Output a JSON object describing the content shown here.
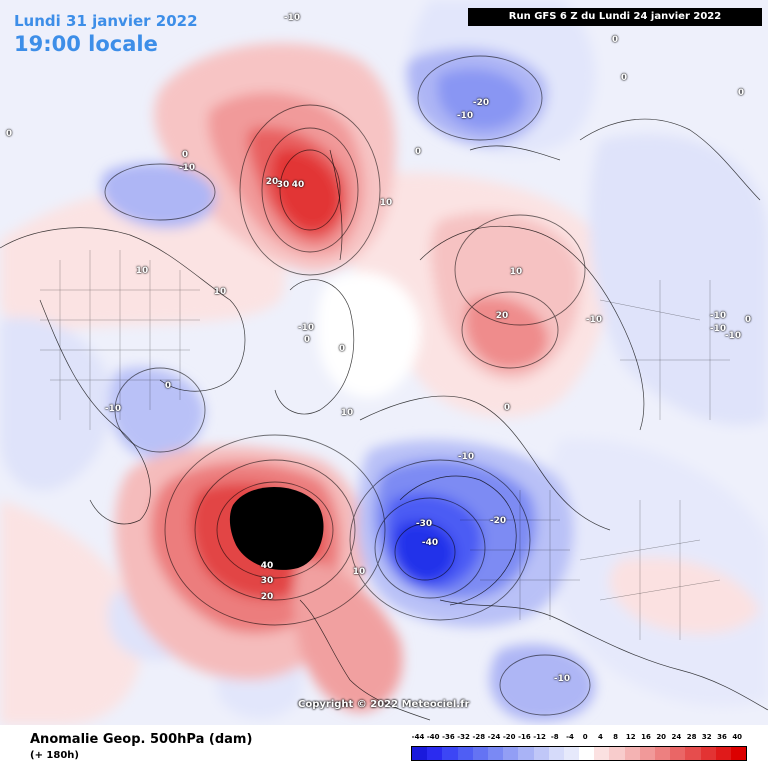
{
  "header": {
    "date": "Lundi 31 janvier 2022",
    "time": "19:00 locale",
    "run": "Run GFS 6 Z du Lundi 24 janvier 2022"
  },
  "copyright": "Copyright © 2022 Meteociel.fr",
  "footer": {
    "title": "Anomalie Geop. 500hPa (dam)",
    "lead": "(+ 180h)"
  },
  "legend": {
    "ticks": [
      "-44",
      "-40",
      "-36",
      "-32",
      "-28",
      "-24",
      "-20",
      "-16",
      "-12",
      "-8",
      "-4",
      "0",
      "4",
      "8",
      "12",
      "16",
      "20",
      "24",
      "28",
      "32",
      "36",
      "40"
    ],
    "colors": [
      "#1a1adc",
      "#2b2bf0",
      "#3c46f5",
      "#4f5ef4",
      "#6473f3",
      "#7a89f4",
      "#929ef5",
      "#a9b3f6",
      "#c0c7f8",
      "#d6dbfa",
      "#e6e9fb",
      "#ffffff",
      "#fbe1e1",
      "#f8cccc",
      "#f4b3b3",
      "#f19999",
      "#ed8080",
      "#ea6666",
      "#e64d4d",
      "#e33333",
      "#e01a1a",
      "#dc0000"
    ]
  },
  "contour_labels": [
    {
      "text": "-10",
      "tone": "light"
    },
    {
      "text": "0",
      "tone": "light"
    },
    {
      "text": "-10",
      "tone": "light"
    },
    {
      "text": "20",
      "tone": "light"
    },
    {
      "text": "30",
      "tone": "light"
    },
    {
      "text": "40",
      "tone": "light"
    },
    {
      "text": "10",
      "tone": "light"
    },
    {
      "text": "-20",
      "tone": "light"
    },
    {
      "text": "-10",
      "tone": "light"
    },
    {
      "text": "0",
      "tone": "light"
    },
    {
      "text": "0",
      "tone": "light"
    },
    {
      "text": "0",
      "tone": "light"
    },
    {
      "text": "10",
      "tone": "light"
    },
    {
      "text": "10",
      "tone": "light"
    },
    {
      "text": "10",
      "tone": "light"
    },
    {
      "text": "20",
      "tone": "light"
    },
    {
      "text": "-10",
      "tone": "light"
    },
    {
      "text": "-10",
      "tone": "light"
    },
    {
      "text": "-10",
      "tone": "light"
    },
    {
      "text": "-10",
      "tone": "light"
    },
    {
      "text": "0",
      "tone": "light"
    },
    {
      "text": "10",
      "tone": "light"
    },
    {
      "text": "-10",
      "tone": "light"
    },
    {
      "text": "0",
      "tone": "light"
    },
    {
      "text": "-10",
      "tone": "light"
    },
    {
      "text": "-30",
      "tone": "light"
    },
    {
      "text": "-20",
      "tone": "light"
    },
    {
      "text": "-40",
      "tone": "light"
    },
    {
      "text": "10",
      "tone": "light"
    },
    {
      "text": "40",
      "tone": "light"
    },
    {
      "text": "30",
      "tone": "light"
    },
    {
      "text": "20",
      "tone": "light"
    },
    {
      "text": "-10",
      "tone": "light"
    },
    {
      "text": "0",
      "tone": "light"
    },
    {
      "text": "-10",
      "tone": "light"
    },
    {
      "text": "0",
      "tone": "light"
    },
    {
      "text": "0",
      "tone": "light"
    },
    {
      "text": "0",
      "tone": "light"
    },
    {
      "text": "0",
      "tone": "light"
    }
  ]
}
